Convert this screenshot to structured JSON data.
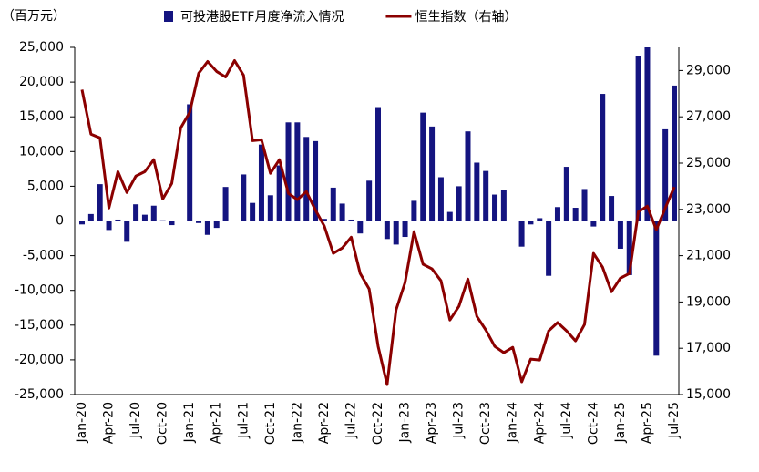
{
  "chart_data": {
    "type": "bar-line",
    "unit_label": "（百万元）",
    "categories": [
      "Jan-20",
      null,
      null,
      "Apr-20",
      null,
      null,
      "Jul-20",
      null,
      null,
      "Oct-20",
      null,
      null,
      "Jan-21",
      null,
      null,
      "Apr-21",
      null,
      null,
      "Jul-21",
      null,
      null,
      "Oct-21",
      null,
      null,
      "Jan-22",
      null,
      null,
      "Apr-22",
      null,
      null,
      "Jul-22",
      null,
      null,
      "Oct-22",
      null,
      null,
      "Jan-23",
      null,
      null,
      "Apr-23",
      null,
      null,
      "Jul-23",
      null,
      null,
      "Oct-23",
      null,
      null,
      "Jan-24",
      null,
      null,
      "Apr-24",
      null,
      null,
      "Jul-24",
      null,
      null,
      "Oct-24",
      null,
      null,
      "Jan-25",
      null,
      null,
      "Apr-25",
      null,
      null,
      "Jul-25"
    ],
    "series": [
      {
        "name": "可投港股ETF月度净流入情况",
        "type": "bar",
        "color": "#141480",
        "values": [
          -500,
          1000,
          5300,
          -1300,
          200,
          -3000,
          2400,
          900,
          2200,
          100,
          -600,
          0,
          16800,
          -300,
          -2000,
          -1000,
          4900,
          0,
          6700,
          2600,
          11000,
          3700,
          8000,
          14200,
          14200,
          12100,
          11500,
          300,
          4800,
          2500,
          200,
          -1800,
          5800,
          16400,
          -2600,
          -3400,
          -2300,
          2900,
          15600,
          13600,
          6300,
          1300,
          5000,
          12900,
          8400,
          7200,
          3800,
          4500,
          0,
          -3700,
          -500,
          400,
          -7900,
          2000,
          7800,
          1900,
          4600,
          -800,
          18300,
          3600,
          -4000,
          -7800,
          23800,
          25000,
          -19400,
          13200,
          19500
        ]
      },
      {
        "name": "恒生指数（右轴）",
        "type": "line",
        "axis": "y2",
        "color": "#8b0000",
        "values": [
          28170,
          26250,
          26090,
          23060,
          24630,
          23730,
          24440,
          24630,
          25150,
          23450,
          24120,
          26520,
          27190,
          28880,
          29390,
          28960,
          28720,
          29430,
          28800,
          25970,
          26010,
          24560,
          25150,
          23690,
          23420,
          23770,
          22980,
          22280,
          21100,
          21330,
          21800,
          20230,
          19560,
          17080,
          15430,
          18660,
          19840,
          22040,
          20630,
          20430,
          19920,
          18220,
          18810,
          19990,
          18380,
          17790,
          17080,
          16810,
          17040,
          15550,
          16530,
          16490,
          17750,
          18110,
          17750,
          17320,
          18030,
          21100,
          20510,
          19440,
          20030,
          20230,
          22900,
          23140,
          22120,
          23060,
          23970
        ]
      }
    ],
    "ylim": [
      -25000,
      25000
    ],
    "yticks": [
      {
        "value": -25000,
        "label": "-25,000"
      },
      {
        "value": -20000,
        "label": "-20,000"
      },
      {
        "value": -15000,
        "label": "-15,000"
      },
      {
        "value": -10000,
        "label": "-10,000"
      },
      {
        "value": -5000,
        "label": "-5,000"
      },
      0,
      {
        "value": 5000,
        "label": "5,000"
      },
      {
        "value": 10000,
        "label": "10,000"
      },
      {
        "value": 15000,
        "label": "15,000"
      },
      {
        "value": 20000,
        "label": "20,000"
      },
      {
        "value": 25000,
        "label": "25,000"
      }
    ],
    "negative_label_color": "#e00000",
    "y2lim": [
      15000,
      30000
    ],
    "y2ticks": [
      {
        "value": 15000,
        "label": "15,000"
      },
      {
        "value": 17000,
        "label": "17,000"
      },
      {
        "value": 19000,
        "label": "19,000"
      },
      {
        "value": 21000,
        "label": "21,000"
      },
      {
        "value": 23000,
        "label": "23,000"
      },
      {
        "value": 25000,
        "label": "25,000"
      },
      {
        "value": 27000,
        "label": "27,000"
      },
      {
        "value": 29000,
        "label": "29,000"
      }
    ],
    "grid": false,
    "legend": "top"
  }
}
